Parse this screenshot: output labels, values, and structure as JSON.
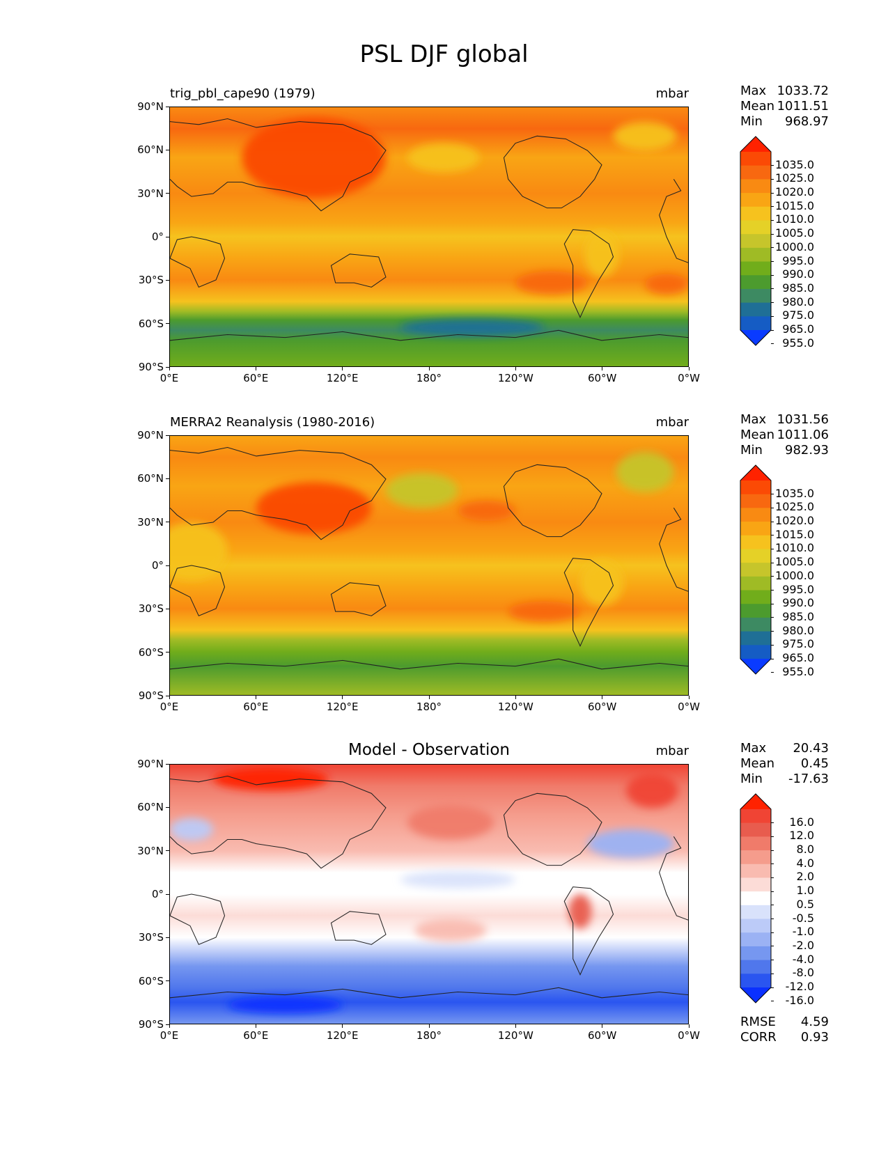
{
  "figure_title": "PSL DJF global",
  "chart_data": [
    {
      "type": "heatmap",
      "title": "trig_pbl_cape90 (1979)",
      "units": "mbar",
      "x_ticks": [
        "0°E",
        "60°E",
        "120°E",
        "180°",
        "120°W",
        "60°W",
        "0°W"
      ],
      "y_ticks": [
        "90°N",
        "60°N",
        "30°N",
        "0°",
        "30°S",
        "60°S",
        "90°S"
      ],
      "stats": [
        {
          "label": "Max",
          "value": "1033.72"
        },
        {
          "label": "Mean",
          "value": "1011.51"
        },
        {
          "label": "Min",
          "value": "968.97"
        }
      ],
      "colorbar_levels": [
        "1035.0",
        "1025.0",
        "1020.0",
        "1015.0",
        "1010.0",
        "1005.0",
        "1000.0",
        "995.0",
        "990.0",
        "985.0",
        "980.0",
        "975.0",
        "965.0",
        "955.0"
      ],
      "colorbar_colors": [
        "#ff2200",
        "#fb4a05",
        "#f86810",
        "#f98a12",
        "#f9a514",
        "#f6c21e",
        "#e5d127",
        "#c6c52b",
        "#9fbb25",
        "#71ad1b",
        "#4c9b2e",
        "#3d8a62",
        "#1f6f96",
        "#155cc4",
        "#0a3bff"
      ],
      "field_profile": [
        {
          "lat": 90,
          "color": "#f98a12"
        },
        {
          "lat": 75,
          "color": "#f86810"
        },
        {
          "lat": 55,
          "color": "#f9a514"
        },
        {
          "lat": 30,
          "color": "#f98a12"
        },
        {
          "lat": 10,
          "color": "#f9a514"
        },
        {
          "lat": 0,
          "color": "#f6c21e"
        },
        {
          "lat": -15,
          "color": "#f9a514"
        },
        {
          "lat": -30,
          "color": "#f98a12"
        },
        {
          "lat": -45,
          "color": "#f6c21e"
        },
        {
          "lat": -52,
          "color": "#9fbb25"
        },
        {
          "lat": -58,
          "color": "#4c9b2e"
        },
        {
          "lat": -65,
          "color": "#3d8a62"
        },
        {
          "lat": -72,
          "color": "#4c9b2e"
        },
        {
          "lat": -90,
          "color": "#71ad1b"
        }
      ],
      "field_spots": [
        {
          "lon": 100,
          "lat": 55,
          "rx": 50,
          "ry": 28,
          "color": "#fb4a05"
        },
        {
          "lon": 190,
          "lat": 55,
          "rx": 25,
          "ry": 10,
          "color": "#f6c21e"
        },
        {
          "lon": 330,
          "lat": 70,
          "rx": 22,
          "ry": 10,
          "color": "#f6c21e"
        },
        {
          "lon": 300,
          "lat": -12,
          "rx": 12,
          "ry": 16,
          "color": "#f6c21e"
        },
        {
          "lon": 210,
          "lat": -63,
          "rx": 50,
          "ry": 6,
          "color": "#1f6f96"
        },
        {
          "lon": 265,
          "lat": -32,
          "rx": 25,
          "ry": 8,
          "color": "#f86810"
        },
        {
          "lon": 345,
          "lat": -33,
          "rx": 15,
          "ry": 7,
          "color": "#f86810"
        }
      ]
    },
    {
      "type": "heatmap",
      "title": "MERRA2 Reanalysis (1980-2016)",
      "units": "mbar",
      "x_ticks": [
        "0°E",
        "60°E",
        "120°E",
        "180°",
        "120°W",
        "60°W",
        "0°W"
      ],
      "y_ticks": [
        "90°N",
        "60°N",
        "30°N",
        "0°",
        "30°S",
        "60°S",
        "90°S"
      ],
      "stats": [
        {
          "label": "Max",
          "value": "1031.56"
        },
        {
          "label": "Mean",
          "value": "1011.06"
        },
        {
          "label": "Min",
          "value": "982.93"
        }
      ],
      "colorbar_levels": [
        "1035.0",
        "1025.0",
        "1020.0",
        "1015.0",
        "1010.0",
        "1005.0",
        "1000.0",
        "995.0",
        "990.0",
        "985.0",
        "980.0",
        "975.0",
        "965.0",
        "955.0"
      ],
      "colorbar_colors": [
        "#ff2200",
        "#fb4a05",
        "#f86810",
        "#f98a12",
        "#f9a514",
        "#f6c21e",
        "#e5d127",
        "#c6c52b",
        "#9fbb25",
        "#71ad1b",
        "#4c9b2e",
        "#3d8a62",
        "#1f6f96",
        "#155cc4",
        "#0a3bff"
      ],
      "field_profile": [
        {
          "lat": 90,
          "color": "#f9a514"
        },
        {
          "lat": 75,
          "color": "#f98a12"
        },
        {
          "lat": 55,
          "color": "#f9a514"
        },
        {
          "lat": 30,
          "color": "#f98a12"
        },
        {
          "lat": 10,
          "color": "#f9a514"
        },
        {
          "lat": 0,
          "color": "#f6c21e"
        },
        {
          "lat": -15,
          "color": "#f9a514"
        },
        {
          "lat": -30,
          "color": "#f98a12"
        },
        {
          "lat": -45,
          "color": "#f6c21e"
        },
        {
          "lat": -52,
          "color": "#9fbb25"
        },
        {
          "lat": -60,
          "color": "#71ad1b"
        },
        {
          "lat": -70,
          "color": "#4c9b2e"
        },
        {
          "lat": -90,
          "color": "#9fbb25"
        }
      ],
      "field_spots": [
        {
          "lon": 100,
          "lat": 40,
          "rx": 40,
          "ry": 18,
          "color": "#fb4a05"
        },
        {
          "lon": 175,
          "lat": 52,
          "rx": 25,
          "ry": 12,
          "color": "#c6c52b"
        },
        {
          "lon": 330,
          "lat": 65,
          "rx": 20,
          "ry": 14,
          "color": "#c6c52b"
        },
        {
          "lon": 15,
          "lat": 10,
          "rx": 25,
          "ry": 20,
          "color": "#f6c21e"
        },
        {
          "lon": 300,
          "lat": -12,
          "rx": 15,
          "ry": 16,
          "color": "#f6c21e"
        },
        {
          "lon": 260,
          "lat": -32,
          "rx": 25,
          "ry": 7,
          "color": "#f86810"
        },
        {
          "lon": 220,
          "lat": 38,
          "rx": 20,
          "ry": 7,
          "color": "#f86810"
        }
      ]
    },
    {
      "type": "heatmap",
      "title": "Model - Observation",
      "units": "mbar",
      "x_ticks": [
        "0°E",
        "60°E",
        "120°E",
        "180°",
        "120°W",
        "60°W",
        "0°W"
      ],
      "y_ticks": [
        "90°N",
        "60°N",
        "30°N",
        "0°",
        "30°S",
        "60°S",
        "90°S"
      ],
      "stats": [
        {
          "label": "Max",
          "value": "20.43"
        },
        {
          "label": "Mean",
          "value": "0.45"
        },
        {
          "label": "Min",
          "value": "-17.63"
        }
      ],
      "extra_stats": [
        {
          "label": "RMSE",
          "value": "4.59"
        },
        {
          "label": "CORR",
          "value": "0.93"
        }
      ],
      "colorbar_levels": [
        "16.0",
        "12.0",
        "8.0",
        "4.0",
        "2.0",
        "1.0",
        "0.5",
        "-0.5",
        "-1.0",
        "-2.0",
        "-4.0",
        "-8.0",
        "-12.0",
        "-16.0"
      ],
      "colorbar_colors": [
        "#ff2200",
        "#f04434",
        "#e85c4e",
        "#f07b6a",
        "#f59c8c",
        "#f9bbb0",
        "#fcdcd7",
        "#ffffff",
        "#d9e2fb",
        "#bccbf8",
        "#9bb2f4",
        "#7697f0",
        "#5077ec",
        "#2a55f0",
        "#0a30ff"
      ],
      "field_profile": [
        {
          "lat": 90,
          "color": "#f04434"
        },
        {
          "lat": 75,
          "color": "#f07b6a"
        },
        {
          "lat": 55,
          "color": "#f59c8c"
        },
        {
          "lat": 30,
          "color": "#f9bbb0"
        },
        {
          "lat": 15,
          "color": "#ffffff"
        },
        {
          "lat": 0,
          "color": "#ffffff"
        },
        {
          "lat": -15,
          "color": "#fcdcd7"
        },
        {
          "lat": -30,
          "color": "#ffffff"
        },
        {
          "lat": -40,
          "color": "#bccbf8"
        },
        {
          "lat": -50,
          "color": "#7697f0"
        },
        {
          "lat": -65,
          "color": "#5077ec"
        },
        {
          "lat": -75,
          "color": "#2a55f0"
        },
        {
          "lat": -90,
          "color": "#7697f0"
        }
      ],
      "field_spots": [
        {
          "lon": 70,
          "lat": 80,
          "rx": 40,
          "ry": 8,
          "color": "#ff2200"
        },
        {
          "lon": 335,
          "lat": 72,
          "rx": 18,
          "ry": 12,
          "color": "#f04434"
        },
        {
          "lon": 195,
          "lat": 50,
          "rx": 30,
          "ry": 12,
          "color": "#f07b6a"
        },
        {
          "lon": 320,
          "lat": 35,
          "rx": 30,
          "ry": 10,
          "color": "#9bb2f4"
        },
        {
          "lon": 285,
          "lat": -12,
          "rx": 8,
          "ry": 12,
          "color": "#e85c4e"
        },
        {
          "lon": 15,
          "lat": 45,
          "rx": 15,
          "ry": 8,
          "color": "#bccbf8"
        },
        {
          "lon": 80,
          "lat": -77,
          "rx": 40,
          "ry": 6,
          "color": "#0a30ff"
        },
        {
          "lon": 195,
          "lat": -25,
          "rx": 25,
          "ry": 8,
          "color": "#f9bbb0"
        },
        {
          "lon": 200,
          "lat": 10,
          "rx": 40,
          "ry": 6,
          "color": "#d9e2fb"
        }
      ]
    }
  ]
}
